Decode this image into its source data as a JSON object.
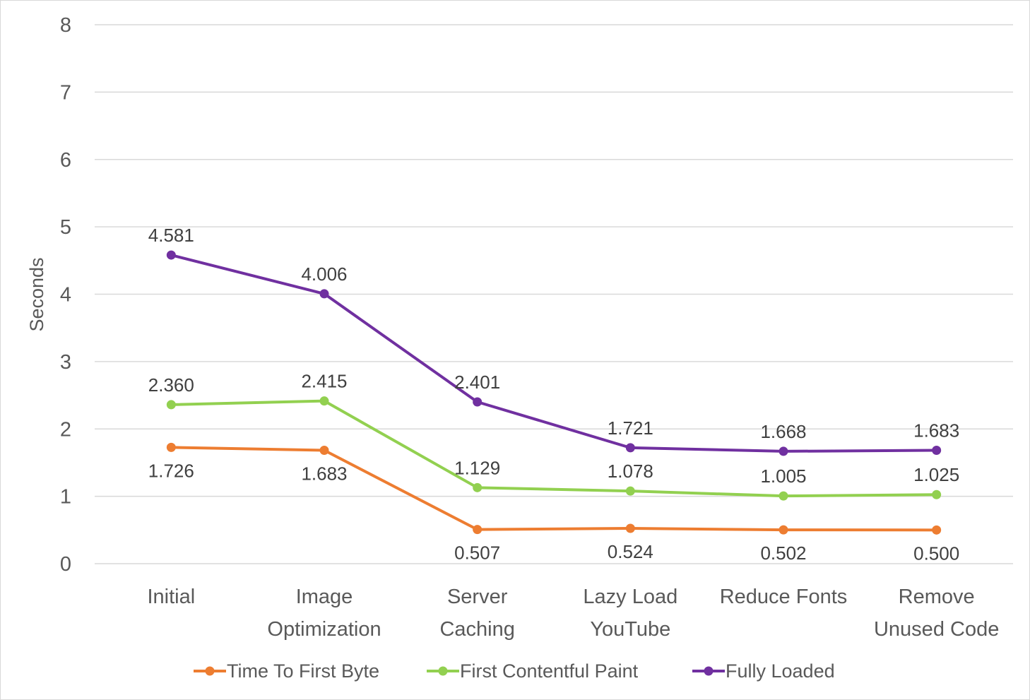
{
  "chart_data": {
    "type": "line",
    "title": "",
    "xlabel": "",
    "ylabel": "Seconds",
    "ylim": [
      0,
      8
    ],
    "yticks": [
      0,
      1,
      2,
      3,
      4,
      5,
      6,
      7,
      8
    ],
    "grid": true,
    "legend_position": "bottom",
    "categories": [
      [
        "Initial"
      ],
      [
        "Image",
        "Optimization"
      ],
      [
        "Server",
        "Caching"
      ],
      [
        "Lazy Load",
        "YouTube"
      ],
      [
        "Reduce Fonts"
      ],
      [
        "Remove",
        "Unused Code"
      ]
    ],
    "series": [
      {
        "name": "Time To First Byte",
        "color": "#ED7D31",
        "values": [
          1.726,
          1.683,
          0.507,
          0.524,
          0.502,
          0.5
        ],
        "labels": [
          "1.726",
          "1.683",
          "0.507",
          "0.524",
          "0.502",
          "0.500"
        ],
        "label_position": "below"
      },
      {
        "name": "First Contentful Paint",
        "color": "#92D050",
        "values": [
          2.36,
          2.415,
          1.129,
          1.078,
          1.005,
          1.025
        ],
        "labels": [
          "2.360",
          "2.415",
          "1.129",
          "1.078",
          "1.005",
          "1.025"
        ],
        "label_position": "above"
      },
      {
        "name": "Fully Loaded",
        "color": "#7030A0",
        "values": [
          4.581,
          4.006,
          2.401,
          1.721,
          1.668,
          1.683
        ],
        "labels": [
          "4.581",
          "4.006",
          "2.401",
          "1.721",
          "1.668",
          "1.683"
        ],
        "label_position": "above"
      }
    ]
  }
}
